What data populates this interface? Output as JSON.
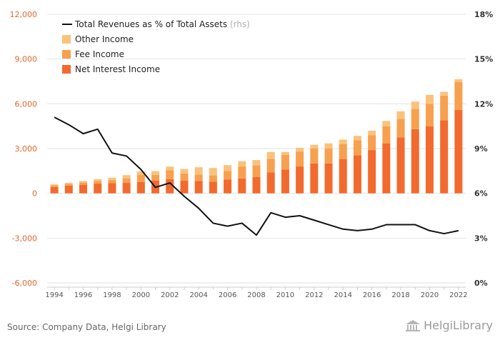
{
  "chart_data": {
    "type": "bar",
    "x": [
      1994,
      1995,
      1996,
      1997,
      1998,
      1999,
      2000,
      2001,
      2002,
      2003,
      2004,
      2005,
      2006,
      2007,
      2008,
      2009,
      2010,
      2011,
      2012,
      2013,
      2014,
      2015,
      2016,
      2017,
      2018,
      2019,
      2020,
      2021,
      2022
    ],
    "x_tick_labels": [
      "1994",
      "1996",
      "1998",
      "2000",
      "2002",
      "2004",
      "2006",
      "2008",
      "2010",
      "2012",
      "2014",
      "2016",
      "2018",
      "2020",
      "2022"
    ],
    "ylim": [
      -6000,
      12000
    ],
    "y_ticks": [
      "-6,000",
      "-3,000",
      "0",
      "3,000",
      "6,000",
      "9,000",
      "12,000"
    ],
    "y2lim": [
      0,
      18
    ],
    "y2_ticks": [
      "0%",
      "3%",
      "6%",
      "9%",
      "12%",
      "15%",
      "18%"
    ],
    "stacked": true,
    "series": [
      {
        "name": "Net Interest Income",
        "kind": "bar",
        "color": "#f26a2e",
        "values": [
          420,
          520,
          560,
          650,
          680,
          700,
          750,
          860,
          950,
          850,
          830,
          780,
          920,
          1000,
          1100,
          1400,
          1600,
          1800,
          2000,
          2000,
          2300,
          2550,
          2900,
          3350,
          3750,
          4300,
          4500,
          4900,
          5600
        ]
      },
      {
        "name": "Fee Income",
        "kind": "bar",
        "color": "#f7a04f",
        "values": [
          110,
          120,
          160,
          180,
          220,
          300,
          480,
          380,
          590,
          480,
          420,
          420,
          570,
          800,
          780,
          920,
          970,
          1000,
          1000,
          1000,
          1000,
          1000,
          1000,
          1150,
          1250,
          1350,
          1500,
          1650,
          1850
        ]
      },
      {
        "name": "Other Income",
        "kind": "bar",
        "color": "#fbc27c",
        "values": [
          70,
          60,
          100,
          120,
          150,
          220,
          250,
          250,
          250,
          300,
          500,
          500,
          400,
          350,
          350,
          450,
          200,
          250,
          250,
          350,
          300,
          300,
          300,
          350,
          500,
          500,
          600,
          250,
          200
        ]
      },
      {
        "name": "Total Revenues as % of Total Assets",
        "suffix": "(rhs)",
        "kind": "line",
        "axis": "right",
        "color": "#111111",
        "values": [
          11.1,
          10.6,
          10.0,
          10.3,
          8.7,
          8.5,
          7.6,
          6.4,
          6.7,
          5.8,
          5.0,
          4.0,
          3.8,
          4.0,
          3.2,
          4.7,
          4.4,
          4.5,
          4.2,
          3.9,
          3.6,
          3.5,
          3.6,
          3.9,
          3.9,
          3.9,
          3.5,
          3.3,
          3.5
        ]
      }
    ]
  },
  "footer": {
    "source": "Source: Company Data, Helgi Library",
    "brand": "HelgiLibrary"
  },
  "colors": {
    "axis_left": "#e3662a",
    "axis_text": "#333333",
    "grid": "#e2e2e2"
  }
}
